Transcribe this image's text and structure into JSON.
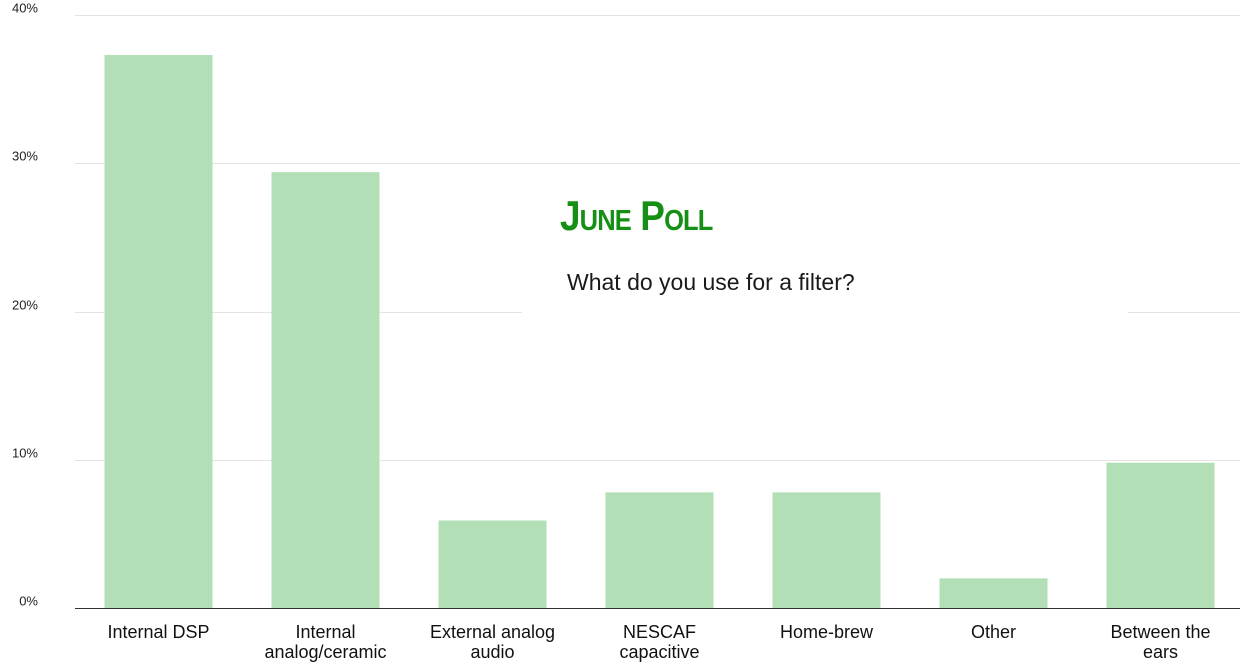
{
  "title": "June Poll",
  "subtitle": "What do you use for a filter?",
  "colors": {
    "bar": "#b3dfb6",
    "title": "#159015",
    "grid": "#e3e3e3",
    "baseline": "#333333"
  },
  "chart_data": {
    "type": "bar",
    "categories": [
      [
        "Internal DSP"
      ],
      [
        "Internal",
        "analog/ceramic"
      ],
      [
        "External analog",
        "audio"
      ],
      [
        "NESCAF",
        "capacitive"
      ],
      [
        "Home-brew"
      ],
      [
        "Other"
      ],
      [
        "Between the",
        "ears"
      ]
    ],
    "values": [
      37.3,
      29.4,
      5.9,
      7.8,
      7.8,
      2.0,
      9.8
    ],
    "ylim": [
      0,
      40
    ],
    "yticks": [
      0,
      10,
      20,
      30,
      40
    ],
    "ytick_labels": [
      "0%",
      "10%",
      "20%",
      "30%",
      "40%"
    ],
    "grid": true,
    "legend": "none"
  }
}
